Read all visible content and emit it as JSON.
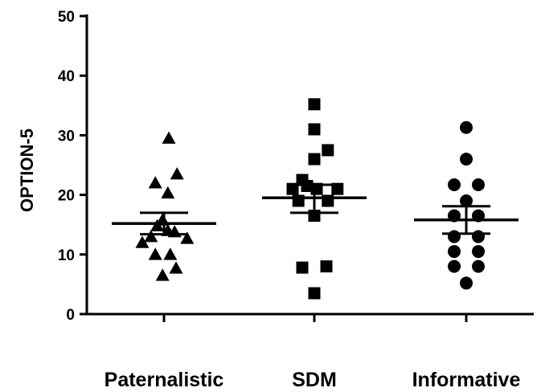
{
  "chart_data": {
    "type": "scatter",
    "title": "",
    "xlabel": "",
    "ylabel": "OPTION-5",
    "ylim": [
      0,
      50
    ],
    "yticks": [
      0,
      10,
      20,
      30,
      40,
      50
    ],
    "grid": false,
    "categories": [
      "Paternalistic",
      "SDM",
      "Informative"
    ],
    "groups": [
      {
        "category": "Paternalistic",
        "marker": "triangle",
        "points": [
          {
            "x": 0.1,
            "y": 29.5
          },
          {
            "x": -0.18,
            "y": 22.0
          },
          {
            "x": 0.08,
            "y": 20.3
          },
          {
            "x": 0.27,
            "y": 23.5
          },
          {
            "x": -0.03,
            "y": 15.8
          },
          {
            "x": -0.14,
            "y": 14.8
          },
          {
            "x": -0.27,
            "y": 13.0
          },
          {
            "x": 0.08,
            "y": 14.0
          },
          {
            "x": 0.22,
            "y": 13.8
          },
          {
            "x": -0.45,
            "y": 12.0
          },
          {
            "x": 0.48,
            "y": 12.7
          },
          {
            "x": -0.18,
            "y": 10.0
          },
          {
            "x": 0.13,
            "y": 10.0
          },
          {
            "x": -0.03,
            "y": 6.5
          },
          {
            "x": 0.25,
            "y": 7.7
          }
        ],
        "mean": 15.2,
        "sem_upper": 17.0,
        "sem_lower": 13.4
      },
      {
        "category": "SDM",
        "marker": "square",
        "points": [
          {
            "x": 0.0,
            "y": 35.2
          },
          {
            "x": 0.0,
            "y": 31.0
          },
          {
            "x": 0.28,
            "y": 27.5
          },
          {
            "x": 0.0,
            "y": 26.0
          },
          {
            "x": -0.25,
            "y": 22.5
          },
          {
            "x": -0.45,
            "y": 21.0
          },
          {
            "x": -0.15,
            "y": 21.5
          },
          {
            "x": 0.05,
            "y": 21.0
          },
          {
            "x": 0.48,
            "y": 21.0
          },
          {
            "x": -0.33,
            "y": 19.0
          },
          {
            "x": 0.28,
            "y": 19.0
          },
          {
            "x": 0.0,
            "y": 16.5
          },
          {
            "x": -0.25,
            "y": 7.8
          },
          {
            "x": 0.25,
            "y": 8.0
          },
          {
            "x": 0.0,
            "y": 3.5
          }
        ],
        "mean": 19.5,
        "sem_upper": 21.7,
        "sem_lower": 17.0
      },
      {
        "category": "Informative",
        "marker": "circle",
        "points": [
          {
            "x": 0.0,
            "y": 31.3
          },
          {
            "x": 0.0,
            "y": 26.0
          },
          {
            "x": -0.25,
            "y": 21.7
          },
          {
            "x": 0.25,
            "y": 21.7
          },
          {
            "x": 0.0,
            "y": 19.0
          },
          {
            "x": -0.25,
            "y": 16.5
          },
          {
            "x": 0.25,
            "y": 16.5
          },
          {
            "x": -0.25,
            "y": 13.0
          },
          {
            "x": 0.25,
            "y": 13.0
          },
          {
            "x": -0.25,
            "y": 10.5
          },
          {
            "x": 0.25,
            "y": 10.5
          },
          {
            "x": -0.25,
            "y": 8.0
          },
          {
            "x": 0.25,
            "y": 8.0
          },
          {
            "x": 0.0,
            "y": 5.2
          }
        ],
        "mean": 15.8,
        "sem_upper": 18.1,
        "sem_lower": 13.5
      }
    ],
    "colors": {
      "marker": "#000000",
      "axis": "#000000",
      "background": "#ffffff"
    }
  }
}
